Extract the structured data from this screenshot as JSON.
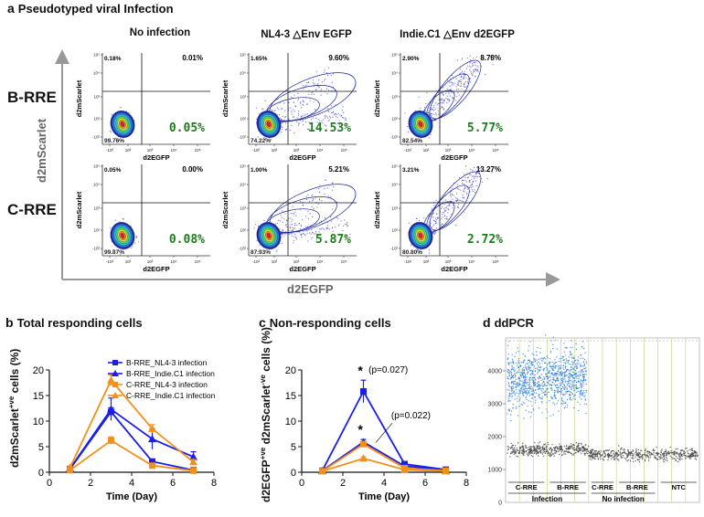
{
  "panel_a": {
    "letter": "a",
    "title": "Pseudotyped viral Infection",
    "columns": [
      "No infection",
      "NL4-3 △Env EGFP",
      "Indie.C1 △Env d2EGFP"
    ],
    "rows": [
      "B-RRE",
      "C-RRE"
    ],
    "y_axis": "d2mScarlet",
    "x_axis": "d2EGFP",
    "plot_y_label": "d2mScarlet",
    "plot_x_label": "d2EGFP",
    "ticks_x": [
      "-10²",
      "10²",
      "10³",
      "10⁴",
      "10⁵"
    ],
    "ticks_y": [
      "-10²",
      "10²",
      "10³",
      "10⁴",
      "10⁵"
    ],
    "quadrants": [
      {
        "tl": "0.18%",
        "tr": "0.01%",
        "bl": "99.76%",
        "br": "0.05%"
      },
      {
        "tl": "1.65%",
        "tr": "9.60%",
        "bl": "74.22%",
        "br": "14.53%"
      },
      {
        "tl": "2.90%",
        "tr": "8.78%",
        "bl": "82.54%",
        "br": "5.77%"
      },
      {
        "tl": "0.05%",
        "tr": "0.00%",
        "bl": "99.87%",
        "br": "0.08%"
      },
      {
        "tl": "1.00%",
        "tr": "5.21%",
        "bl": "87.93%",
        "br": "5.87%"
      },
      {
        "tl": "3.21%",
        "tr": "13.27%",
        "bl": "80.80%",
        "br": "2.72%"
      }
    ]
  },
  "panel_b": {
    "letter": "b",
    "title": "Total responding cells",
    "ylabel_main": "d2mScarlet",
    "ylabel_sup": "+ve",
    "ylabel_tail": " cells (%)"
  },
  "panel_c": {
    "letter": "c",
    "title": "Non-responding cells",
    "ylabel_a": "d2EGFP",
    "ylabel_b": "d2mScarlet",
    "ylabel_sup": "-ve",
    "ylabel_tail": " cells (%)",
    "star1": "*",
    "annot1": "(p=0.027)",
    "star2": "*",
    "annot2": "(p=0.022)"
  },
  "panel_d": {
    "letter": "d",
    "title": "ddPCR",
    "y_ticks": [
      "4000",
      "3000",
      "2000",
      "1000"
    ],
    "y_zero": "0",
    "group_labels": [
      "C-RRE",
      "B-RRE",
      "C-RRE",
      "B-RRE",
      "NTC"
    ],
    "bottom_labels": [
      "Infection",
      "No infection"
    ]
  },
  "chart_data": [
    {
      "type": "line",
      "title": "Total responding cells",
      "xlabel": "Time (Day)",
      "ylabel": "d2mScarlet+ve cells (%)",
      "xlim": [
        0,
        8
      ],
      "ylim": [
        0,
        20
      ],
      "xticks": [
        0,
        2,
        4,
        6,
        8
      ],
      "yticks": [
        0,
        5,
        10,
        15,
        20
      ],
      "x": [
        1,
        3,
        5,
        7
      ],
      "series": [
        {
          "name": "B-RRE_NL4-3 infection",
          "color": "#1a1ee6",
          "marker": "square",
          "values": [
            0.6,
            11.8,
            2.1,
            0.4
          ],
          "err": [
            0.3,
            0.8,
            0.4,
            0.2
          ]
        },
        {
          "name": "B-RRE_Indie.C1 infection",
          "color": "#1a1ee6",
          "marker": "triangle",
          "values": [
            0.7,
            12.3,
            6.5,
            3.0
          ],
          "err": [
            0.3,
            2.2,
            2.0,
            1.0
          ]
        },
        {
          "name": "C-RRE_NL4-3 infection",
          "color": "#f2901e",
          "marker": "square",
          "values": [
            0.4,
            6.2,
            1.3,
            0.3
          ],
          "err": [
            0.2,
            0.7,
            0.3,
            0.1
          ]
        },
        {
          "name": "C-RRE_Indie.C1 infection",
          "color": "#f2901e",
          "marker": "triangle",
          "values": [
            0.9,
            18.0,
            8.5,
            2.0
          ],
          "err": [
            0.3,
            1.0,
            0.8,
            0.5
          ]
        }
      ]
    },
    {
      "type": "line",
      "title": "Non-responding cells",
      "xlabel": "Time (Day)",
      "ylabel": "d2EGFP+ve d2mScarlet-ve cells (%)",
      "xlim": [
        0,
        8
      ],
      "ylim": [
        0,
        20
      ],
      "xticks": [
        0,
        2,
        4,
        6,
        8
      ],
      "yticks": [
        0,
        5,
        10,
        15,
        20
      ],
      "x": [
        1,
        3,
        5,
        7
      ],
      "series": [
        {
          "name": "B-RRE_NL4-3 infection",
          "color": "#1a1ee6",
          "marker": "square",
          "values": [
            0.3,
            15.8,
            1.6,
            0.5
          ],
          "err": [
            0.1,
            2.2,
            0.4,
            0.2
          ]
        },
        {
          "name": "B-RRE_Indie.C1 infection",
          "color": "#1a1ee6",
          "marker": "triangle",
          "values": [
            0.3,
            5.9,
            1.2,
            0.4
          ],
          "err": [
            0.1,
            0.5,
            0.3,
            0.1
          ]
        },
        {
          "name": "C-RRE_NL4-3 infection",
          "color": "#f2901e",
          "marker": "square",
          "values": [
            0.2,
            5.5,
            0.8,
            0.3
          ],
          "err": [
            0.1,
            0.5,
            0.2,
            0.1
          ]
        },
        {
          "name": "C-RRE_Indie.C1 infection",
          "color": "#f2901e",
          "marker": "triangle",
          "values": [
            0.2,
            2.7,
            0.5,
            0.2
          ],
          "err": [
            0.1,
            0.3,
            0.1,
            0.1
          ]
        }
      ]
    }
  ]
}
